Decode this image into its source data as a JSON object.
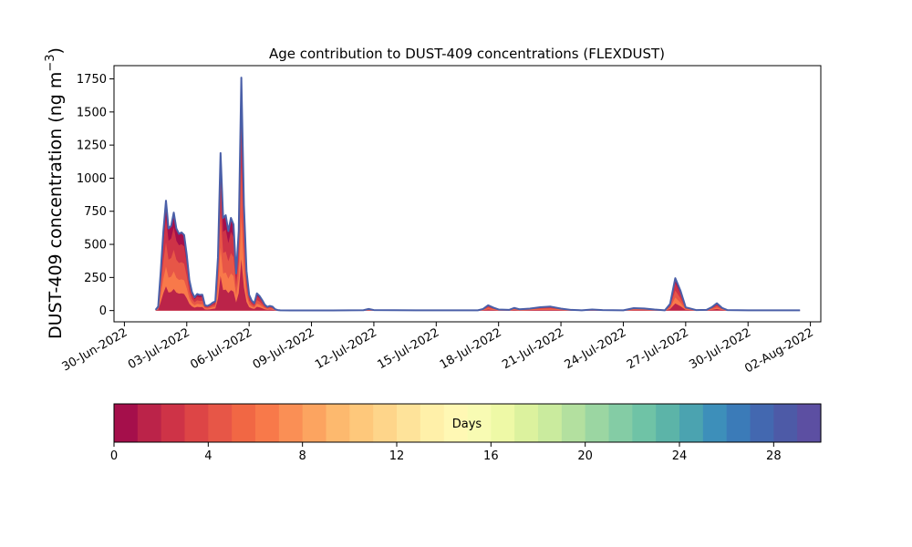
{
  "chart_data": {
    "type": "area",
    "title": "Age contribution to DUST-409 concentrations (FLEXDUST)",
    "ylabel_main": "DUST-409 concentration (ng m",
    "ylabel_sup": "−3",
    "ylabel_close": ")",
    "xlabel": "",
    "ylim": [
      -85,
      1850
    ],
    "xlim": [
      "2022-06-29T12:00",
      "2022-08-02T12:00"
    ],
    "yticks": [
      0,
      250,
      500,
      750,
      1000,
      1250,
      1500,
      1750
    ],
    "xticks": [
      "30-Jun-2022",
      "03-Jul-2022",
      "06-Jul-2022",
      "09-Jul-2022",
      "12-Jul-2022",
      "15-Jul-2022",
      "18-Jul-2022",
      "21-Jul-2022",
      "24-Jul-2022",
      "27-Jul-2022",
      "30-Jul-2022",
      "02-Aug-2022"
    ],
    "xtick_dates": [
      "2022-06-30",
      "2022-07-03",
      "2022-07-06",
      "2022-07-09",
      "2022-07-12",
      "2022-07-15",
      "2022-07-18",
      "2022-07-21",
      "2022-07-24",
      "2022-07-27",
      "2022-07-30",
      "2022-08-02"
    ],
    "total_series": [
      [
        "2022-07-01T12:00",
        5
      ],
      [
        "2022-07-01T15:00",
        30
      ],
      [
        "2022-07-01T18:00",
        300
      ],
      [
        "2022-07-01T21:00",
        600
      ],
      [
        "2022-07-02T00:00",
        830
      ],
      [
        "2022-07-02T03:00",
        620
      ],
      [
        "2022-07-02T06:00",
        640
      ],
      [
        "2022-07-02T09:00",
        740
      ],
      [
        "2022-07-02T12:00",
        620
      ],
      [
        "2022-07-02T15:00",
        580
      ],
      [
        "2022-07-02T18:00",
        590
      ],
      [
        "2022-07-02T21:00",
        570
      ],
      [
        "2022-07-03T00:00",
        420
      ],
      [
        "2022-07-03T03:00",
        230
      ],
      [
        "2022-07-03T06:00",
        140
      ],
      [
        "2022-07-03T09:00",
        100
      ],
      [
        "2022-07-03T12:00",
        125
      ],
      [
        "2022-07-03T15:00",
        118
      ],
      [
        "2022-07-03T18:00",
        120
      ],
      [
        "2022-07-03T21:00",
        40
      ],
      [
        "2022-07-04T00:00",
        35
      ],
      [
        "2022-07-04T03:00",
        45
      ],
      [
        "2022-07-04T06:00",
        60
      ],
      [
        "2022-07-04T09:00",
        70
      ],
      [
        "2022-07-04T12:00",
        400
      ],
      [
        "2022-07-04T15:00",
        1190
      ],
      [
        "2022-07-04T18:00",
        700
      ],
      [
        "2022-07-04T21:00",
        720
      ],
      [
        "2022-07-05T00:00",
        600
      ],
      [
        "2022-07-05T03:00",
        700
      ],
      [
        "2022-07-05T06:00",
        650
      ],
      [
        "2022-07-05T09:00",
        280
      ],
      [
        "2022-07-05T12:00",
        600
      ],
      [
        "2022-07-05T15:00",
        1760
      ],
      [
        "2022-07-05T18:00",
        800
      ],
      [
        "2022-07-05T21:00",
        300
      ],
      [
        "2022-07-06T00:00",
        120
      ],
      [
        "2022-07-06T03:00",
        75
      ],
      [
        "2022-07-06T06:00",
        55
      ],
      [
        "2022-07-06T09:00",
        130
      ],
      [
        "2022-07-06T12:00",
        110
      ],
      [
        "2022-07-06T15:00",
        80
      ],
      [
        "2022-07-06T18:00",
        45
      ],
      [
        "2022-07-06T21:00",
        28
      ],
      [
        "2022-07-07T00:00",
        35
      ],
      [
        "2022-07-07T03:00",
        30
      ],
      [
        "2022-07-07T06:00",
        10
      ],
      [
        "2022-07-07T09:00",
        4
      ],
      [
        "2022-07-07T12:00",
        2
      ],
      [
        "2022-07-08T00:00",
        1
      ],
      [
        "2022-07-10T00:00",
        1
      ],
      [
        "2022-07-11T12:00",
        3
      ],
      [
        "2022-07-11T18:00",
        12
      ],
      [
        "2022-07-12T00:00",
        4
      ],
      [
        "2022-07-14T00:00",
        2
      ],
      [
        "2022-07-16T00:00",
        2
      ],
      [
        "2022-07-17T00:00",
        2
      ],
      [
        "2022-07-17T06:00",
        12
      ],
      [
        "2022-07-17T12:00",
        40
      ],
      [
        "2022-07-17T18:00",
        22
      ],
      [
        "2022-07-18T00:00",
        8
      ],
      [
        "2022-07-18T12:00",
        5
      ],
      [
        "2022-07-18T18:00",
        20
      ],
      [
        "2022-07-19T00:00",
        10
      ],
      [
        "2022-07-19T12:00",
        15
      ],
      [
        "2022-07-20T00:00",
        25
      ],
      [
        "2022-07-20T12:00",
        30
      ],
      [
        "2022-07-21T00:00",
        15
      ],
      [
        "2022-07-21T12:00",
        5
      ],
      [
        "2022-07-22T00:00",
        2
      ],
      [
        "2022-07-22T12:00",
        8
      ],
      [
        "2022-07-23T00:00",
        4
      ],
      [
        "2022-07-24T00:00",
        2
      ],
      [
        "2022-07-24T12:00",
        18
      ],
      [
        "2022-07-25T00:00",
        16
      ],
      [
        "2022-07-25T12:00",
        8
      ],
      [
        "2022-07-26T00:00",
        2
      ],
      [
        "2022-07-26T06:00",
        50
      ],
      [
        "2022-07-26T12:00",
        245
      ],
      [
        "2022-07-26T18:00",
        150
      ],
      [
        "2022-07-27T00:00",
        25
      ],
      [
        "2022-07-27T12:00",
        4
      ],
      [
        "2022-07-28T00:00",
        5
      ],
      [
        "2022-07-28T06:00",
        25
      ],
      [
        "2022-07-28T12:00",
        55
      ],
      [
        "2022-07-28T18:00",
        20
      ],
      [
        "2022-07-29T00:00",
        4
      ],
      [
        "2022-07-30T00:00",
        2
      ],
      [
        "2022-07-31T00:00",
        2
      ],
      [
        "2022-08-01T00:00",
        2
      ],
      [
        "2022-08-01T12:00",
        2
      ]
    ],
    "line_color": "#4a5fa8",
    "colorbar": {
      "label": "Days",
      "min": 0,
      "max": 30,
      "ticks": [
        0,
        4,
        8,
        12,
        16,
        20,
        24,
        28
      ],
      "colors": [
        "#a50f4b",
        "#bb2349",
        "#ce3347",
        "#dd4546",
        "#e75647",
        "#f16744",
        "#f8794a",
        "#fa8f55",
        "#fca460",
        "#fdb96e",
        "#fec87b",
        "#fed58a",
        "#fee39a",
        "#fff0a9",
        "#fff8b4",
        "#f8fbb3",
        "#eef9a6",
        "#dcf29e",
        "#caeb9e",
        "#b3e09f",
        "#9bd6a2",
        "#84cca5",
        "#6fc3a6",
        "#5cb4a8",
        "#4ba3b0",
        "#3d8fba",
        "#3b7bb8",
        "#4368b0",
        "#4d5aa7",
        "#5c4fa2"
      ]
    }
  }
}
